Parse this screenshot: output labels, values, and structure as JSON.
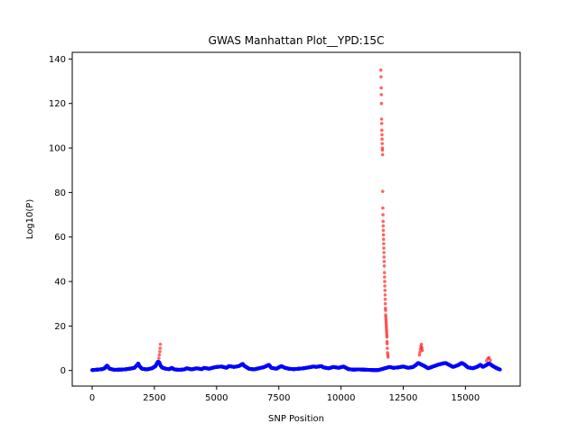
{
  "chart_data": {
    "type": "scatter",
    "title": "GWAS Manhattan Plot__YPD:15C",
    "xlabel": "SNP Position",
    "ylabel": "Log10(P)",
    "xlim": [
      -800,
      17200
    ],
    "ylim": [
      -7,
      143
    ],
    "xticks": [
      0,
      2500,
      5000,
      7500,
      10000,
      12500,
      15000
    ],
    "yticks": [
      0,
      20,
      40,
      60,
      80,
      100,
      120,
      140
    ],
    "grid": false,
    "colors": {
      "significant": "#ff0000",
      "background": "#0000ff"
    },
    "series": [
      {
        "points": [
          [
            0,
            0.2
          ],
          [
            200,
            0.4
          ],
          [
            400,
            0.6
          ],
          [
            500,
            1.0
          ],
          [
            600,
            2.2
          ],
          [
            700,
            0.8
          ],
          [
            900,
            0.3
          ],
          [
            1100,
            0.4
          ],
          [
            1300,
            0.5
          ],
          [
            1500,
            0.8
          ],
          [
            1700,
            1.2
          ],
          [
            1800,
            2.4
          ],
          [
            1850,
            3.2
          ],
          [
            1900,
            2.0
          ],
          [
            2000,
            0.8
          ],
          [
            2200,
            0.5
          ],
          [
            2400,
            1.0
          ],
          [
            2550,
            2.0
          ],
          [
            2600,
            3.2
          ],
          [
            2650,
            4.0
          ],
          [
            2700,
            3.6
          ],
          [
            2750,
            2.2
          ],
          [
            2800,
            1.4
          ],
          [
            2950,
            0.8
          ],
          [
            3100,
            0.6
          ],
          [
            3200,
            1.2
          ],
          [
            3300,
            0.5
          ],
          [
            3500,
            0.3
          ],
          [
            3700,
            0.5
          ],
          [
            3800,
            1.0
          ],
          [
            4000,
            0.5
          ],
          [
            4200,
            1.0
          ],
          [
            4400,
            0.6
          ],
          [
            4500,
            1.2
          ],
          [
            4700,
            0.8
          ],
          [
            4900,
            1.4
          ],
          [
            5000,
            1.6
          ],
          [
            5200,
            1.8
          ],
          [
            5400,
            1.2
          ],
          [
            5500,
            2.0
          ],
          [
            5700,
            1.6
          ],
          [
            5900,
            2.0
          ],
          [
            6050,
            3.0
          ],
          [
            6100,
            2.2
          ],
          [
            6300,
            0.8
          ],
          [
            6500,
            0.5
          ],
          [
            6700,
            1.0
          ],
          [
            6900,
            1.5
          ],
          [
            7000,
            2.0
          ],
          [
            7100,
            2.6
          ],
          [
            7200,
            1.2
          ],
          [
            7400,
            0.8
          ],
          [
            7500,
            1.4
          ],
          [
            7600,
            2.0
          ],
          [
            7750,
            1.2
          ],
          [
            7900,
            0.8
          ],
          [
            8100,
            0.6
          ],
          [
            8300,
            0.8
          ],
          [
            8500,
            1.0
          ],
          [
            8700,
            1.4
          ],
          [
            8900,
            1.8
          ],
          [
            9000,
            1.6
          ],
          [
            9200,
            2.0
          ],
          [
            9300,
            1.4
          ],
          [
            9500,
            1.0
          ],
          [
            9700,
            1.6
          ],
          [
            9900,
            1.2
          ],
          [
            10100,
            1.8
          ],
          [
            10300,
            0.6
          ],
          [
            10500,
            0.4
          ],
          [
            10700,
            0.5
          ],
          [
            10900,
            0.4
          ],
          [
            11100,
            0.3
          ],
          [
            11300,
            0.2
          ],
          [
            11500,
            0.2
          ],
          [
            11950,
            1.6
          ],
          [
            12100,
            1.2
          ],
          [
            12300,
            1.4
          ],
          [
            12500,
            1.8
          ],
          [
            12700,
            1.2
          ],
          [
            12900,
            1.6
          ],
          [
            13000,
            2.4
          ],
          [
            13100,
            3.4
          ],
          [
            13350,
            2.0
          ],
          [
            13500,
            1.0
          ],
          [
            13700,
            1.8
          ],
          [
            13900,
            2.6
          ],
          [
            14100,
            3.2
          ],
          [
            14200,
            3.4
          ],
          [
            14400,
            2.2
          ],
          [
            14500,
            1.6
          ],
          [
            14700,
            2.4
          ],
          [
            14850,
            3.4
          ],
          [
            14950,
            2.8
          ],
          [
            15100,
            1.4
          ],
          [
            15300,
            1.0
          ],
          [
            15500,
            1.8
          ],
          [
            15600,
            2.6
          ],
          [
            15700,
            1.6
          ],
          [
            15800,
            2.2
          ],
          [
            15950,
            3.2
          ],
          [
            16100,
            2.0
          ],
          [
            16300,
            0.8
          ],
          [
            16400,
            0.4
          ]
        ]
      },
      {
        "points": [
          [
            2680,
            5.5
          ],
          [
            2700,
            7.0
          ],
          [
            2720,
            8.5
          ],
          [
            2730,
            10.0
          ],
          [
            2740,
            11.8
          ],
          [
            11600,
            135
          ],
          [
            11610,
            132
          ],
          [
            11615,
            127
          ],
          [
            11620,
            124
          ],
          [
            11625,
            120
          ],
          [
            11630,
            113
          ],
          [
            11635,
            111
          ],
          [
            11640,
            108
          ],
          [
            11645,
            106
          ],
          [
            11650,
            104
          ],
          [
            11655,
            102
          ],
          [
            11660,
            100
          ],
          [
            11665,
            99
          ],
          [
            11670,
            97
          ],
          [
            11675,
            80.5
          ],
          [
            11680,
            73
          ],
          [
            11685,
            70
          ],
          [
            11690,
            67
          ],
          [
            11695,
            65
          ],
          [
            11700,
            63
          ],
          [
            11705,
            61
          ],
          [
            11710,
            59
          ],
          [
            11715,
            57
          ],
          [
            11720,
            55
          ],
          [
            11725,
            53
          ],
          [
            11730,
            51
          ],
          [
            11735,
            49
          ],
          [
            11740,
            47
          ],
          [
            11745,
            44
          ],
          [
            11750,
            42
          ],
          [
            11755,
            40
          ],
          [
            11760,
            38
          ],
          [
            11765,
            36
          ],
          [
            11770,
            34
          ],
          [
            11775,
            32
          ],
          [
            11780,
            30
          ],
          [
            11785,
            28
          ],
          [
            11790,
            27
          ],
          [
            11795,
            25
          ],
          [
            11800,
            24
          ],
          [
            11805,
            23
          ],
          [
            11810,
            22
          ],
          [
            11815,
            21
          ],
          [
            11820,
            20
          ],
          [
            11825,
            19
          ],
          [
            11830,
            18
          ],
          [
            11835,
            17
          ],
          [
            11840,
            16
          ],
          [
            11845,
            15
          ],
          [
            11850,
            13
          ],
          [
            11855,
            12
          ],
          [
            11860,
            10
          ],
          [
            11870,
            8
          ],
          [
            11880,
            7
          ],
          [
            11890,
            6
          ],
          [
            13150,
            7.0
          ],
          [
            13170,
            8.2
          ],
          [
            13190,
            9.5
          ],
          [
            13210,
            10.8
          ],
          [
            13230,
            11.8
          ],
          [
            13250,
            10.2
          ],
          [
            13270,
            9.0
          ],
          [
            15850,
            4.4
          ],
          [
            15900,
            5.4
          ],
          [
            15950,
            5.8
          ],
          [
            16000,
            4.6
          ]
        ]
      }
    ]
  }
}
